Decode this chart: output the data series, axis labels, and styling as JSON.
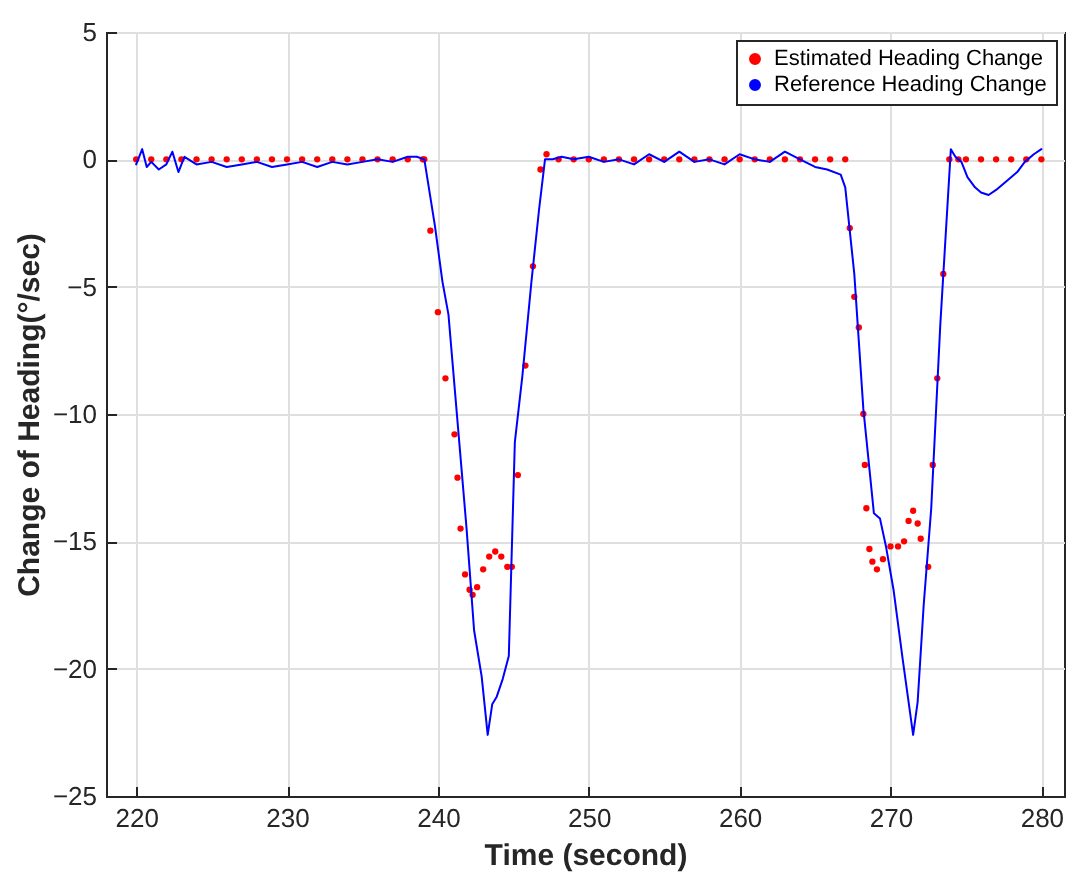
{
  "chart_data": {
    "type": "line",
    "xlabel": "Time (second)",
    "ylabel": "Change of Heading(°/sec)",
    "xlim": [
      218,
      281.5
    ],
    "xticks": [
      220,
      230,
      240,
      250,
      260,
      270,
      280
    ],
    "ylim": [
      -25,
      5
    ],
    "yticks": [
      -25,
      -20,
      -15,
      -10,
      -5,
      0,
      5
    ],
    "grid": true,
    "legend": "top right",
    "series": [
      {
        "name": "Estimated Heading Change",
        "type": "scatter",
        "marker": "circle",
        "color": "#ff0000",
        "x": [
          220,
          221,
          222,
          223,
          224,
          225,
          226,
          227,
          228,
          229,
          230,
          231,
          232,
          233,
          234,
          235,
          236,
          237,
          238,
          239,
          239.1,
          239.5,
          240,
          240.5,
          241.1,
          241.3,
          241.5,
          241.8,
          242.1,
          242.3,
          242.6,
          243,
          243.4,
          243.8,
          244.2,
          244.6,
          244.9,
          245.3,
          245.8,
          246.3,
          246.8,
          247.2,
          248,
          249,
          250,
          251,
          252,
          253,
          254,
          255,
          256,
          257,
          258,
          259,
          260,
          261,
          262,
          263,
          264,
          265,
          266,
          267,
          267.3,
          267.6,
          267.9,
          268.2,
          268.3,
          268.4,
          268.6,
          268.8,
          269.1,
          269.5,
          270,
          270.5,
          270.9,
          271.2,
          271.5,
          271.8,
          272,
          272.5,
          272.8,
          273.1,
          273.5,
          273.9,
          274.5,
          275,
          276,
          277,
          278,
          279,
          280
        ],
        "values": [
          0,
          0,
          0,
          0,
          0,
          0,
          0,
          0,
          0,
          0,
          0,
          0,
          0,
          0,
          0,
          0,
          0,
          0,
          0,
          0,
          0,
          -2.8,
          -6,
          -8.6,
          -10.8,
          -12.5,
          -14.5,
          -16.3,
          -16.9,
          -17.1,
          -16.8,
          -16.1,
          -15.6,
          -15.4,
          -15.6,
          -16,
          -16,
          -12.4,
          -8.1,
          -4.2,
          -0.4,
          0.2,
          0,
          0,
          0,
          0,
          0,
          0,
          0,
          0,
          0,
          0,
          0,
          0,
          0,
          0,
          0,
          0,
          0,
          0,
          0,
          0,
          -2.7,
          -5.4,
          -6.6,
          -10,
          -12,
          -13.7,
          -15.3,
          -15.8,
          -16.1,
          -15.7,
          -15.2,
          -15.2,
          -15,
          -14.2,
          -13.8,
          -14.3,
          -14.9,
          -16,
          -12,
          -8.6,
          -4.5,
          0,
          0,
          0,
          0,
          0,
          0,
          0,
          0
        ]
      },
      {
        "name": "Reference Heading Change",
        "marker": "none",
        "color": "#0000ff",
        "x": [
          220,
          220.4,
          220.7,
          221,
          221.5,
          222,
          222.4,
          222.8,
          223.2,
          224,
          225,
          226,
          227,
          228,
          229,
          230,
          231,
          232,
          233,
          234,
          235,
          236,
          237,
          238,
          238.6,
          239.1,
          239.8,
          240.3,
          240.7,
          241.3,
          241.9,
          242.4,
          242.9,
          243.3,
          243.6,
          243.9,
          244.3,
          244.7,
          245.1,
          245.6,
          246.2,
          246.7,
          247.1,
          247.6,
          248.2,
          249,
          250,
          251,
          252,
          253,
          254,
          255,
          256,
          257,
          258,
          259,
          260,
          261,
          262,
          263,
          264,
          265,
          265.8,
          266.7,
          267,
          267.6,
          268.2,
          268.9,
          269.3,
          269.7,
          270.2,
          270.8,
          271.5,
          271.8,
          272.2,
          272.7,
          273.3,
          274,
          274.3,
          274.7,
          275.1,
          275.6,
          276,
          276.5,
          277,
          277.8,
          278.4,
          278.9,
          279.5,
          280
        ],
        "values": [
          -0.2,
          0.4,
          -0.3,
          -0.1,
          -0.4,
          -0.2,
          0.3,
          -0.5,
          0.1,
          -0.2,
          -0.1,
          -0.3,
          -0.2,
          -0.1,
          -0.3,
          -0.2,
          -0.1,
          -0.3,
          -0.1,
          -0.2,
          -0.1,
          0,
          -0.1,
          0.1,
          0.1,
          0,
          -2.6,
          -4.8,
          -6.1,
          -10.3,
          -14.5,
          -18.5,
          -20.3,
          -22.6,
          -21.4,
          -21.1,
          -20.4,
          -19.5,
          -11.1,
          -8.5,
          -4.8,
          -2,
          0,
          0,
          0.1,
          0,
          0.1,
          -0.1,
          0,
          -0.2,
          0.2,
          -0.1,
          0.3,
          -0.1,
          0,
          -0.2,
          0.2,
          0,
          -0.1,
          0.3,
          0,
          -0.3,
          -0.4,
          -0.6,
          -1.1,
          -4.5,
          -9.8,
          -13.9,
          -14.1,
          -15.2,
          -16.9,
          -19.6,
          -22.6,
          -21.3,
          -17.5,
          -13.7,
          -6.5,
          0.4,
          0.1,
          -0.1,
          -0.7,
          -1.1,
          -1.3,
          -1.4,
          -1.2,
          -0.8,
          -0.5,
          -0.1,
          0.2,
          0.4
        ]
      }
    ]
  }
}
